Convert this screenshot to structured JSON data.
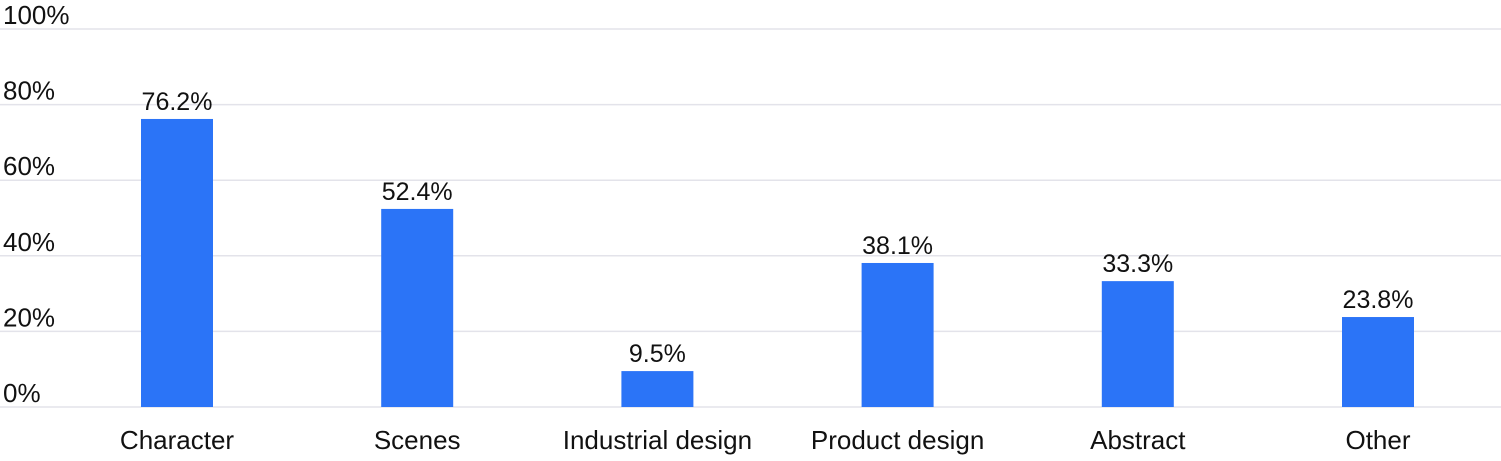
{
  "chart_data": {
    "type": "bar",
    "categories": [
      "Character",
      "Scenes",
      "Industrial design",
      "Product design",
      "Abstract",
      "Other"
    ],
    "values": [
      76.2,
      52.4,
      9.5,
      38.1,
      33.3,
      23.8
    ],
    "data_labels": [
      "76.2%",
      "52.4%",
      "9.5%",
      "38.1%",
      "33.3%",
      "23.8%"
    ],
    "y_ticks": [
      0,
      20,
      40,
      60,
      80,
      100
    ],
    "y_tick_labels": [
      "0%",
      "20%",
      "40%",
      "60%",
      "80%",
      "100%"
    ],
    "ylim": [
      0,
      100
    ],
    "grid": true,
    "bar_color": "#2b74f7",
    "legend": "none",
    "title": "",
    "xlabel": "",
    "ylabel": ""
  }
}
